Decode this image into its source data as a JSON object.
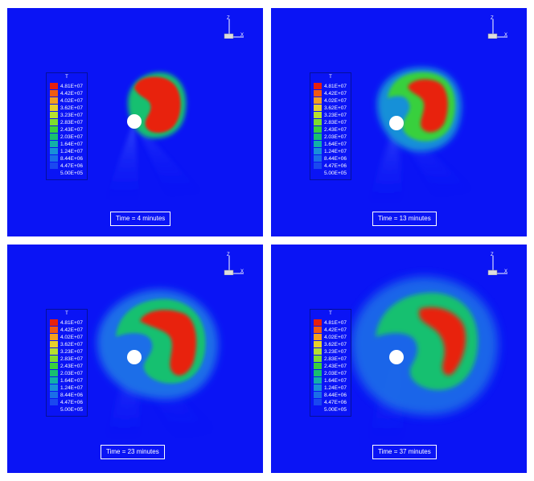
{
  "colors": {
    "background": "#0a14f5",
    "legend_bar": [
      "#e8200c",
      "#f25a10",
      "#f4a020",
      "#e8d02a",
      "#b6e030",
      "#7edc2e",
      "#38d03c",
      "#18c070",
      "#12b0a8",
      "#1890d8",
      "#1a6ee8",
      "#1a48f0",
      "#0a14f5"
    ]
  },
  "legend": {
    "title": "T",
    "entries": [
      "4.81E+07",
      "4.42E+07",
      "4.02E+07",
      "3.62E+07",
      "3.23E+07",
      "2.83E+07",
      "2.43E+07",
      "2.03E+07",
      "1.64E+07",
      "1.24E+07",
      "8.44E+06",
      "4.47E+06",
      "5.00E+05"
    ]
  },
  "axes": {
    "z_label": "Z",
    "x_label": "X"
  },
  "panels": [
    {
      "time_label": "Time = 4 minutes"
    },
    {
      "time_label": "Time = 13 minutes"
    },
    {
      "time_label": "Time = 23 minutes"
    },
    {
      "time_label": "Time = 37 minutes"
    }
  ]
}
